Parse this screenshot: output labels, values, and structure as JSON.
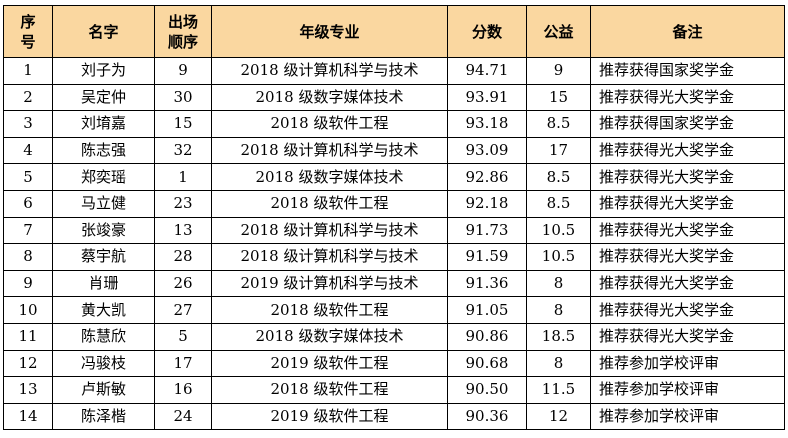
{
  "table": {
    "headers": [
      {
        "l1": "序",
        "l2": "号"
      },
      {
        "l1": "名字",
        "l2": ""
      },
      {
        "l1": "出场",
        "l2": "顺序"
      },
      {
        "l1": "年级专业",
        "l2": ""
      },
      {
        "l1": "分数",
        "l2": ""
      },
      {
        "l1": "公益",
        "l2": ""
      },
      {
        "l1": "备注",
        "l2": ""
      }
    ],
    "rows": [
      [
        "1",
        "刘子为",
        "9",
        "2018 级计算机科学与技术",
        "94.71",
        "9",
        "推荐获得国家奖学金"
      ],
      [
        "2",
        "吴定仲",
        "30",
        "2018 级数字媒体技术",
        "93.91",
        "15",
        "推荐获得光大奖学金"
      ],
      [
        "3",
        "刘堉嘉",
        "15",
        "2018 级软件工程",
        "93.18",
        "8.5",
        "推荐获得国家奖学金"
      ],
      [
        "4",
        "陈志强",
        "32",
        "2018 级计算机科学与技术",
        "93.09",
        "17",
        "推荐获得光大奖学金"
      ],
      [
        "5",
        "郑奕瑶",
        "1",
        "2018 级数字媒体技术",
        "92.86",
        "8.5",
        "推荐获得光大奖学金"
      ],
      [
        "6",
        "马立健",
        "23",
        "2018 级软件工程",
        "92.18",
        "8.5",
        "推荐获得光大奖学金"
      ],
      [
        "7",
        "张竣豪",
        "13",
        "2018 级计算机科学与技术",
        "91.73",
        "10.5",
        "推荐获得光大奖学金"
      ],
      [
        "8",
        "蔡宇航",
        "28",
        "2018 级计算机科学与技术",
        "91.59",
        "10.5",
        "推荐获得光大奖学金"
      ],
      [
        "9",
        "肖珊",
        "26",
        "2019 级计算机科学与技术",
        "91.36",
        "8",
        "推荐获得光大奖学金"
      ],
      [
        "10",
        "黄大凯",
        "27",
        "2018 级软件工程",
        "91.05",
        "8",
        "推荐获得光大奖学金"
      ],
      [
        "11",
        "陈慧欣",
        "5",
        "2018 级数字媒体技术",
        "90.86",
        "18.5",
        "推荐获得光大奖学金"
      ],
      [
        "12",
        "冯骏枝",
        "17",
        "2019 级软件工程",
        "90.68",
        "8",
        "推荐参加学校评审"
      ],
      [
        "13",
        "卢斯敏",
        "16",
        "2018 级软件工程",
        "90.50",
        "11.5",
        "推荐参加学校评审"
      ],
      [
        "14",
        "陈泽楷",
        "24",
        "2019 级软件工程",
        "90.36",
        "12",
        "推荐参加学校评审"
      ]
    ]
  },
  "colors": {
    "header_bg": "#fad7a0",
    "border": "#000000"
  }
}
